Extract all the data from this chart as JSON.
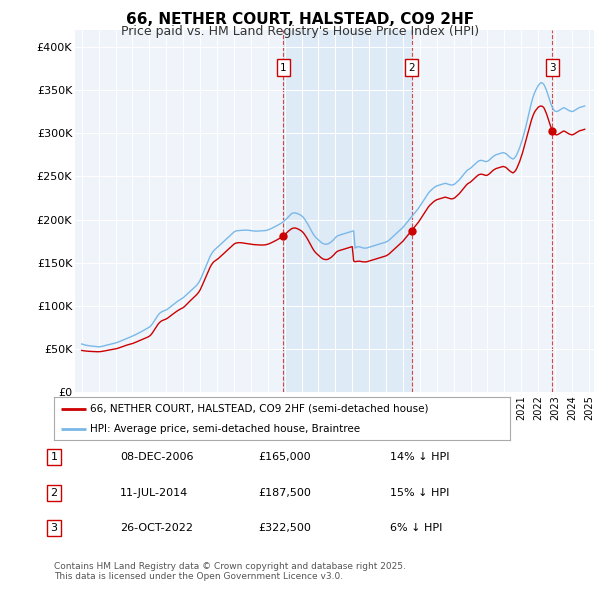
{
  "title": "66, NETHER COURT, HALSTEAD, CO9 2HF",
  "subtitle": "Price paid vs. HM Land Registry's House Price Index (HPI)",
  "hpi_label": "HPI: Average price, semi-detached house, Braintree",
  "price_label": "66, NETHER COURT, HALSTEAD, CO9 2HF (semi-detached house)",
  "hpi_color": "#7ab8e8",
  "price_color": "#cc0000",
  "shade_color": "#dae8f5",
  "plot_bg": "#eef4fa",
  "ylim": [
    0,
    420000
  ],
  "yticks": [
    0,
    50000,
    100000,
    150000,
    200000,
    250000,
    300000,
    350000,
    400000
  ],
  "ytick_labels": [
    "£0",
    "£50K",
    "£100K",
    "£150K",
    "£200K",
    "£250K",
    "£300K",
    "£350K",
    "£400K"
  ],
  "sales": [
    {
      "num": 1,
      "date": "08-DEC-2006",
      "price": 165000,
      "hpi_pct": "14% ↓ HPI",
      "year": 2006.93
    },
    {
      "num": 2,
      "date": "11-JUL-2014",
      "price": 187500,
      "hpi_pct": "15% ↓ HPI",
      "year": 2014.53
    },
    {
      "num": 3,
      "date": "26-OCT-2022",
      "price": 322500,
      "hpi_pct": "6% ↓ HPI",
      "year": 2022.82
    }
  ],
  "footer": "Contains HM Land Registry data © Crown copyright and database right 2025.\nThis data is licensed under the Open Government Licence v3.0.",
  "hpi_data_x": [
    1995.0,
    1995.083,
    1995.167,
    1995.25,
    1995.333,
    1995.417,
    1995.5,
    1995.583,
    1995.667,
    1995.75,
    1995.833,
    1995.917,
    1996.0,
    1996.083,
    1996.167,
    1996.25,
    1996.333,
    1996.417,
    1996.5,
    1996.583,
    1996.667,
    1996.75,
    1996.833,
    1996.917,
    1997.0,
    1997.083,
    1997.167,
    1997.25,
    1997.333,
    1997.417,
    1997.5,
    1997.583,
    1997.667,
    1997.75,
    1997.833,
    1997.917,
    1998.0,
    1998.083,
    1998.167,
    1998.25,
    1998.333,
    1998.417,
    1998.5,
    1998.583,
    1998.667,
    1998.75,
    1998.833,
    1998.917,
    1999.0,
    1999.083,
    1999.167,
    1999.25,
    1999.333,
    1999.417,
    1999.5,
    1999.583,
    1999.667,
    1999.75,
    1999.833,
    1999.917,
    2000.0,
    2000.083,
    2000.167,
    2000.25,
    2000.333,
    2000.417,
    2000.5,
    2000.583,
    2000.667,
    2000.75,
    2000.833,
    2000.917,
    2001.0,
    2001.083,
    2001.167,
    2001.25,
    2001.333,
    2001.417,
    2001.5,
    2001.583,
    2001.667,
    2001.75,
    2001.833,
    2001.917,
    2002.0,
    2002.083,
    2002.167,
    2002.25,
    2002.333,
    2002.417,
    2002.5,
    2002.583,
    2002.667,
    2002.75,
    2002.833,
    2002.917,
    2003.0,
    2003.083,
    2003.167,
    2003.25,
    2003.333,
    2003.417,
    2003.5,
    2003.583,
    2003.667,
    2003.75,
    2003.833,
    2003.917,
    2004.0,
    2004.083,
    2004.167,
    2004.25,
    2004.333,
    2004.417,
    2004.5,
    2004.583,
    2004.667,
    2004.75,
    2004.833,
    2004.917,
    2005.0,
    2005.083,
    2005.167,
    2005.25,
    2005.333,
    2005.417,
    2005.5,
    2005.583,
    2005.667,
    2005.75,
    2005.833,
    2005.917,
    2006.0,
    2006.083,
    2006.167,
    2006.25,
    2006.333,
    2006.417,
    2006.5,
    2006.583,
    2006.667,
    2006.75,
    2006.833,
    2006.917,
    2007.0,
    2007.083,
    2007.167,
    2007.25,
    2007.333,
    2007.417,
    2007.5,
    2007.583,
    2007.667,
    2007.75,
    2007.833,
    2007.917,
    2008.0,
    2008.083,
    2008.167,
    2008.25,
    2008.333,
    2008.417,
    2008.5,
    2008.583,
    2008.667,
    2008.75,
    2008.833,
    2008.917,
    2009.0,
    2009.083,
    2009.167,
    2009.25,
    2009.333,
    2009.417,
    2009.5,
    2009.583,
    2009.667,
    2009.75,
    2009.833,
    2009.917,
    2010.0,
    2010.083,
    2010.167,
    2010.25,
    2010.333,
    2010.417,
    2010.5,
    2010.583,
    2010.667,
    2010.75,
    2010.833,
    2010.917,
    2011.0,
    2011.083,
    2011.167,
    2011.25,
    2011.333,
    2011.417,
    2011.5,
    2011.583,
    2011.667,
    2011.75,
    2011.833,
    2011.917,
    2012.0,
    2012.083,
    2012.167,
    2012.25,
    2012.333,
    2012.417,
    2012.5,
    2012.583,
    2012.667,
    2012.75,
    2012.833,
    2012.917,
    2013.0,
    2013.083,
    2013.167,
    2013.25,
    2013.333,
    2013.417,
    2013.5,
    2013.583,
    2013.667,
    2013.75,
    2013.833,
    2013.917,
    2014.0,
    2014.083,
    2014.167,
    2014.25,
    2014.333,
    2014.417,
    2014.5,
    2014.583,
    2014.667,
    2014.75,
    2014.833,
    2014.917,
    2015.0,
    2015.083,
    2015.167,
    2015.25,
    2015.333,
    2015.417,
    2015.5,
    2015.583,
    2015.667,
    2015.75,
    2015.833,
    2015.917,
    2016.0,
    2016.083,
    2016.167,
    2016.25,
    2016.333,
    2016.417,
    2016.5,
    2016.583,
    2016.667,
    2016.75,
    2016.833,
    2016.917,
    2017.0,
    2017.083,
    2017.167,
    2017.25,
    2017.333,
    2017.417,
    2017.5,
    2017.583,
    2017.667,
    2017.75,
    2017.833,
    2017.917,
    2018.0,
    2018.083,
    2018.167,
    2018.25,
    2018.333,
    2018.417,
    2018.5,
    2018.583,
    2018.667,
    2018.75,
    2018.833,
    2018.917,
    2019.0,
    2019.083,
    2019.167,
    2019.25,
    2019.333,
    2019.417,
    2019.5,
    2019.583,
    2019.667,
    2019.75,
    2019.833,
    2019.917,
    2020.0,
    2020.083,
    2020.167,
    2020.25,
    2020.333,
    2020.417,
    2020.5,
    2020.583,
    2020.667,
    2020.75,
    2020.833,
    2020.917,
    2021.0,
    2021.083,
    2021.167,
    2021.25,
    2021.333,
    2021.417,
    2021.5,
    2021.583,
    2021.667,
    2021.75,
    2021.833,
    2021.917,
    2022.0,
    2022.083,
    2022.167,
    2022.25,
    2022.333,
    2022.417,
    2022.5,
    2022.583,
    2022.667,
    2022.75,
    2022.833,
    2022.917,
    2023.0,
    2023.083,
    2023.167,
    2023.25,
    2023.333,
    2023.417,
    2023.5,
    2023.583,
    2023.667,
    2023.75,
    2023.833,
    2023.917,
    2024.0,
    2024.083,
    2024.167,
    2024.25,
    2024.333,
    2024.417,
    2024.5,
    2024.583,
    2024.667,
    2024.75
  ],
  "hpi_data_y": [
    56000,
    55500,
    55000,
    54500,
    54200,
    54000,
    53800,
    53500,
    53300,
    53100,
    52900,
    52700,
    52700,
    52800,
    53100,
    53500,
    53900,
    54300,
    54800,
    55200,
    55600,
    56000,
    56400,
    56800,
    57200,
    57700,
    58300,
    59000,
    59700,
    60300,
    61000,
    61700,
    62300,
    63000,
    63700,
    64300,
    65000,
    65800,
    66600,
    67500,
    68300,
    69100,
    70000,
    70900,
    71800,
    72700,
    73600,
    74500,
    75500,
    77000,
    79000,
    81500,
    84000,
    86500,
    89000,
    91000,
    92500,
    93500,
    94200,
    94800,
    95500,
    96500,
    97800,
    99200,
    100500,
    101800,
    103000,
    104200,
    105400,
    106500,
    107500,
    108500,
    109500,
    111000,
    112500,
    114000,
    115500,
    117000,
    118500,
    120000,
    121500,
    123000,
    124800,
    127000,
    130000,
    133500,
    137500,
    141500,
    145500,
    149500,
    153500,
    157000,
    160000,
    162500,
    164500,
    166000,
    167500,
    169000,
    170500,
    172000,
    173500,
    175000,
    176500,
    178000,
    179500,
    181000,
    182500,
    184000,
    185500,
    186500,
    187000,
    187200,
    187300,
    187500,
    187600,
    187700,
    187800,
    187800,
    187700,
    187500,
    187200,
    187000,
    186800,
    186700,
    186600,
    186700,
    186800,
    186900,
    187000,
    187100,
    187200,
    187500,
    188000,
    188500,
    189200,
    190000,
    190800,
    191700,
    192500,
    193400,
    194200,
    195200,
    196200,
    197500,
    199000,
    200500,
    202000,
    203700,
    205300,
    207000,
    207500,
    207800,
    207500,
    207000,
    206300,
    205500,
    204500,
    203000,
    201000,
    198500,
    196000,
    193000,
    190000,
    187000,
    184000,
    181500,
    179500,
    178000,
    176500,
    175000,
    173500,
    172500,
    171800,
    171500,
    171500,
    172000,
    173000,
    174000,
    175500,
    177000,
    179000,
    180500,
    181500,
    182000,
    182500,
    183000,
    183500,
    184000,
    184500,
    185000,
    185500,
    186000,
    186500,
    187000,
    167000,
    168000,
    168500,
    168500,
    168000,
    167500,
    167000,
    167000,
    167000,
    167500,
    168000,
    168500,
    169000,
    169500,
    170000,
    170500,
    171000,
    171500,
    172000,
    172500,
    173000,
    173500,
    174000,
    175000,
    176000,
    177500,
    179000,
    180500,
    182000,
    183500,
    185000,
    186500,
    188000,
    189500,
    191000,
    193000,
    195000,
    197000,
    199000,
    201000,
    203000,
    205000,
    207000,
    209000,
    211000,
    213000,
    215500,
    218000,
    220500,
    223000,
    225500,
    228000,
    230500,
    232500,
    234000,
    235500,
    237000,
    238000,
    239000,
    239500,
    240000,
    240500,
    241000,
    241500,
    242000,
    241500,
    241000,
    240500,
    240000,
    240000,
    240500,
    241500,
    243000,
    244500,
    246000,
    248000,
    250000,
    252000,
    254000,
    256000,
    257500,
    258500,
    259500,
    261000,
    262500,
    264000,
    265500,
    267000,
    268000,
    268500,
    268500,
    268000,
    267500,
    267000,
    267500,
    268500,
    270000,
    271500,
    273000,
    274000,
    275000,
    275500,
    276000,
    276500,
    277000,
    277500,
    277000,
    276500,
    275000,
    273500,
    272000,
    271000,
    270000,
    271000,
    273000,
    276000,
    280000,
    284000,
    289000,
    294000,
    300000,
    306000,
    313000,
    320000,
    327000,
    334000,
    340000,
    345000,
    349000,
    352000,
    355000,
    357000,
    358500,
    358000,
    356500,
    353000,
    349000,
    344000,
    339000,
    334000,
    330000,
    327000,
    325500,
    325000,
    325500,
    326500,
    327500,
    328500,
    329500,
    329000,
    328000,
    327000,
    326000,
    325500,
    325000,
    325500,
    326500,
    327500,
    328500,
    329500,
    330000,
    330500,
    331000,
    331500
  ],
  "price_data_x": [
    1995.0,
    1995.083,
    1995.167,
    1995.25,
    1995.333,
    1995.417,
    1995.5,
    1995.583,
    1995.667,
    1995.75,
    1995.833,
    1995.917,
    1996.0,
    1996.083,
    1996.167,
    1996.25,
    1996.333,
    1996.417,
    1996.5,
    1996.583,
    1996.667,
    1996.75,
    1996.833,
    1996.917,
    1997.0,
    1997.083,
    1997.167,
    1997.25,
    1997.333,
    1997.417,
    1997.5,
    1997.583,
    1997.667,
    1997.75,
    1997.833,
    1997.917,
    1998.0,
    1998.083,
    1998.167,
    1998.25,
    1998.333,
    1998.417,
    1998.5,
    1998.583,
    1998.667,
    1998.75,
    1998.833,
    1998.917,
    1999.0,
    1999.083,
    1999.167,
    1999.25,
    1999.333,
    1999.417,
    1999.5,
    1999.583,
    1999.667,
    1999.75,
    1999.833,
    1999.917,
    2000.0,
    2000.083,
    2000.167,
    2000.25,
    2000.333,
    2000.417,
    2000.5,
    2000.583,
    2000.667,
    2000.75,
    2000.833,
    2000.917,
    2001.0,
    2001.083,
    2001.167,
    2001.25,
    2001.333,
    2001.417,
    2001.5,
    2001.583,
    2001.667,
    2001.75,
    2001.833,
    2001.917,
    2002.0,
    2002.083,
    2002.167,
    2002.25,
    2002.333,
    2002.417,
    2002.5,
    2002.583,
    2002.667,
    2002.75,
    2002.833,
    2002.917,
    2003.0,
    2003.083,
    2003.167,
    2003.25,
    2003.333,
    2003.417,
    2003.5,
    2003.583,
    2003.667,
    2003.75,
    2003.833,
    2003.917,
    2004.0,
    2004.083,
    2004.167,
    2004.25,
    2004.333,
    2004.417,
    2004.5,
    2004.583,
    2004.667,
    2004.75,
    2004.833,
    2004.917,
    2005.0,
    2005.083,
    2005.167,
    2005.25,
    2005.333,
    2005.417,
    2005.5,
    2005.583,
    2005.667,
    2005.75,
    2005.833,
    2005.917,
    2006.0,
    2006.083,
    2006.167,
    2006.25,
    2006.333,
    2006.417,
    2006.5,
    2006.583,
    2006.667,
    2006.75,
    2006.833,
    2006.917,
    2007.0,
    2007.083,
    2007.167,
    2007.25,
    2007.333,
    2007.417,
    2007.5,
    2007.583,
    2007.667,
    2007.75,
    2007.833,
    2007.917,
    2008.0,
    2008.083,
    2008.167,
    2008.25,
    2008.333,
    2008.417,
    2008.5,
    2008.583,
    2008.667,
    2008.75,
    2008.833,
    2008.917,
    2009.0,
    2009.083,
    2009.167,
    2009.25,
    2009.333,
    2009.417,
    2009.5,
    2009.583,
    2009.667,
    2009.75,
    2009.833,
    2009.917,
    2010.0,
    2010.083,
    2010.167,
    2010.25,
    2010.333,
    2010.417,
    2010.5,
    2010.583,
    2010.667,
    2010.75,
    2010.833,
    2010.917,
    2011.0,
    2011.083,
    2011.167,
    2011.25,
    2011.333,
    2011.417,
    2011.5,
    2011.583,
    2011.667,
    2011.75,
    2011.833,
    2011.917,
    2012.0,
    2012.083,
    2012.167,
    2012.25,
    2012.333,
    2012.417,
    2012.5,
    2012.583,
    2012.667,
    2012.75,
    2012.833,
    2012.917,
    2013.0,
    2013.083,
    2013.167,
    2013.25,
    2013.333,
    2013.417,
    2013.5,
    2013.583,
    2013.667,
    2013.75,
    2013.833,
    2013.917,
    2014.0,
    2014.083,
    2014.167,
    2014.25,
    2014.333,
    2014.417,
    2014.5,
    2014.583,
    2014.667,
    2014.75,
    2014.833,
    2014.917,
    2015.0,
    2015.083,
    2015.167,
    2015.25,
    2015.333,
    2015.417,
    2015.5,
    2015.583,
    2015.667,
    2015.75,
    2015.833,
    2015.917,
    2016.0,
    2016.083,
    2016.167,
    2016.25,
    2016.333,
    2016.417,
    2016.5,
    2016.583,
    2016.667,
    2016.75,
    2016.833,
    2016.917,
    2017.0,
    2017.083,
    2017.167,
    2017.25,
    2017.333,
    2017.417,
    2017.5,
    2017.583,
    2017.667,
    2017.75,
    2017.833,
    2017.917,
    2018.0,
    2018.083,
    2018.167,
    2018.25,
    2018.333,
    2018.417,
    2018.5,
    2018.583,
    2018.667,
    2018.75,
    2018.833,
    2018.917,
    2019.0,
    2019.083,
    2019.167,
    2019.25,
    2019.333,
    2019.417,
    2019.5,
    2019.583,
    2019.667,
    2019.75,
    2019.833,
    2019.917,
    2020.0,
    2020.083,
    2020.167,
    2020.25,
    2020.333,
    2020.417,
    2020.5,
    2020.583,
    2020.667,
    2020.75,
    2020.833,
    2020.917,
    2021.0,
    2021.083,
    2021.167,
    2021.25,
    2021.333,
    2021.417,
    2021.5,
    2021.583,
    2021.667,
    2021.75,
    2021.833,
    2021.917,
    2022.0,
    2022.083,
    2022.167,
    2022.25,
    2022.333,
    2022.417,
    2022.5,
    2022.583,
    2022.667,
    2022.75,
    2022.833,
    2022.917,
    2023.0,
    2023.083,
    2023.167,
    2023.25,
    2023.333,
    2023.417,
    2023.5,
    2023.583,
    2023.667,
    2023.75,
    2023.833,
    2023.917,
    2024.0,
    2024.083,
    2024.167,
    2024.25,
    2024.333,
    2024.417,
    2024.5,
    2024.583,
    2024.667,
    2024.75
  ],
  "price_data_y": [
    48500,
    48200,
    48000,
    47800,
    47600,
    47500,
    47400,
    47300,
    47200,
    47100,
    47100,
    47000,
    47000,
    47100,
    47300,
    47600,
    47900,
    48200,
    48500,
    48800,
    49200,
    49500,
    49800,
    50000,
    50300,
    50700,
    51200,
    51800,
    52400,
    53000,
    53600,
    54200,
    54700,
    55200,
    55700,
    56100,
    56500,
    57100,
    57800,
    58500,
    59200,
    59900,
    60600,
    61300,
    62000,
    62700,
    63400,
    64100,
    65000,
    66500,
    68500,
    71000,
    73500,
    76000,
    78500,
    80500,
    82000,
    83000,
    83700,
    84300,
    85000,
    86000,
    87200,
    88500,
    89800,
    91000,
    92200,
    93400,
    94500,
    95500,
    96400,
    97200,
    98100,
    99400,
    101000,
    102700,
    104400,
    106000,
    107600,
    109200,
    110700,
    112200,
    113900,
    115900,
    118500,
    122000,
    125700,
    129500,
    133300,
    137100,
    140900,
    144500,
    147500,
    149800,
    151500,
    152700,
    153800,
    155000,
    156500,
    158000,
    159500,
    161000,
    162500,
    164000,
    165500,
    167000,
    168500,
    170000,
    171500,
    172500,
    173000,
    173200,
    173300,
    173200,
    173000,
    172800,
    172500,
    172200,
    172000,
    171800,
    171500,
    171300,
    171000,
    171000,
    170800,
    170700,
    170600,
    170500,
    170500,
    170600,
    170700,
    171000,
    171500,
    172000,
    172700,
    173500,
    174300,
    175200,
    176000,
    176900,
    177700,
    178700,
    179700,
    181000,
    182500,
    184000,
    185500,
    187000,
    188300,
    189500,
    190000,
    190300,
    190000,
    189500,
    188700,
    187800,
    186700,
    185200,
    183200,
    180700,
    178200,
    175200,
    172200,
    169200,
    166200,
    163700,
    161700,
    160200,
    158700,
    157200,
    155700,
    154700,
    154000,
    153700,
    153700,
    154200,
    155200,
    156200,
    157700,
    159200,
    161200,
    162700,
    163700,
    164200,
    164700,
    165200,
    165700,
    166200,
    166700,
    167200,
    167700,
    168200,
    168700,
    152000,
    151200,
    151500,
    151800,
    151800,
    151500,
    151200,
    151000,
    151000,
    151000,
    151500,
    152000,
    152500,
    153000,
    153500,
    154000,
    154500,
    155000,
    155500,
    156000,
    156500,
    157000,
    157500,
    158000,
    159000,
    160000,
    161500,
    163000,
    164500,
    166000,
    167500,
    169000,
    170500,
    172000,
    173500,
    175000,
    177000,
    179000,
    181000,
    183000,
    185000,
    187000,
    189000,
    191000,
    193000,
    195000,
    197000,
    199500,
    202000,
    204500,
    207000,
    209500,
    212000,
    214500,
    216500,
    218000,
    219500,
    221000,
    222000,
    223000,
    223500,
    224000,
    224500,
    225000,
    225500,
    226000,
    225500,
    225000,
    224500,
    224000,
    224000,
    224500,
    225500,
    227000,
    228500,
    230000,
    232000,
    234000,
    236000,
    238000,
    240000,
    241500,
    242500,
    243500,
    245000,
    246500,
    248000,
    249500,
    251000,
    252000,
    252500,
    252500,
    252000,
    251500,
    251000,
    251500,
    252500,
    254000,
    255500,
    257000,
    258000,
    259000,
    259500,
    260000,
    260500,
    261000,
    261500,
    261000,
    260500,
    259000,
    257500,
    256000,
    255000,
    254000,
    255000,
    257000,
    260000,
    264000,
    268000,
    273000,
    278000,
    284000,
    290000,
    296000,
    302000,
    308000,
    314000,
    319000,
    323000,
    326000,
    328000,
    330000,
    331000,
    331500,
    331000,
    329500,
    326000,
    322000,
    317000,
    312000,
    307000,
    303000,
    300000,
    298500,
    298000,
    298500,
    299500,
    300500,
    301500,
    302500,
    302000,
    301000,
    300000,
    299000,
    298500,
    298000,
    298500,
    299500,
    300500,
    301500,
    302500,
    303000,
    303500,
    304000,
    304500
  ]
}
